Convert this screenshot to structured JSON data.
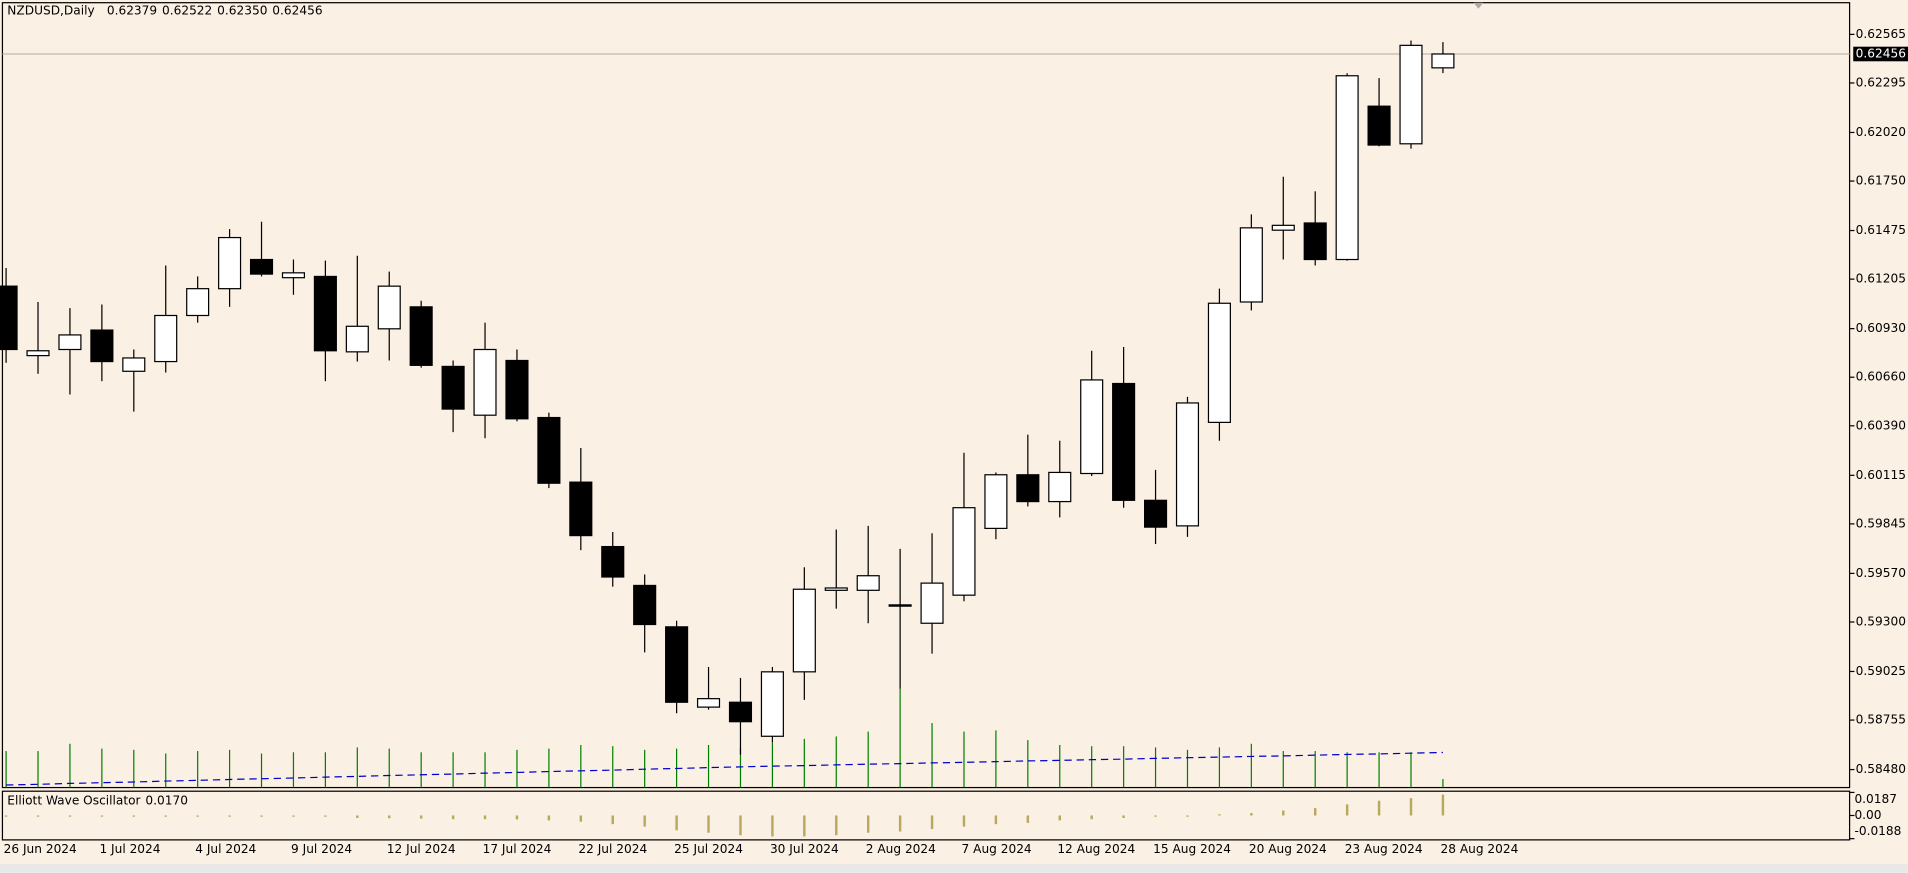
{
  "chart_data": [
    {
      "type": "candlestick",
      "title": "NZDUSD,Daily",
      "header_labels": [
        "0.62379",
        "0.62522",
        "0.62350",
        "0.62456"
      ],
      "categories": [
        "26 Jun 2024",
        null,
        null,
        "1 Jul 2024",
        null,
        null,
        "4 Jul 2024",
        null,
        null,
        "9 Jul 2024",
        null,
        null,
        "12 Jul 2024",
        null,
        null,
        "17 Jul 2024",
        null,
        null,
        "22 Jul 2024",
        null,
        null,
        "25 Jul 2024",
        null,
        null,
        "30 Jul 2024",
        null,
        null,
        "2 Aug 2024",
        null,
        null,
        "7 Aug 2024",
        null,
        null,
        "12 Aug 2024",
        null,
        null,
        "15 Aug 2024",
        null,
        null,
        "20 Aug 2024",
        null,
        null,
        "23 Aug 2024",
        null,
        null,
        "28 Aug 2024"
      ],
      "open": [
        0.61166,
        0.6078,
        0.60814,
        0.60922,
        0.60693,
        0.60747,
        0.61003,
        0.61152,
        0.61314,
        0.61213,
        0.6122,
        0.60801,
        0.60929,
        0.61051,
        0.6072,
        0.60449,
        0.60753,
        0.60436,
        0.60077,
        0.59719,
        0.59503,
        0.59273,
        0.58827,
        0.58854,
        0.58665,
        0.59023,
        0.59476,
        0.59476,
        0.59395,
        0.59293,
        0.59449,
        0.5982,
        0.60118,
        0.59969,
        0.60125,
        0.60625,
        0.59976,
        0.59834,
        0.60409,
        0.61078,
        0.61477,
        0.61517,
        0.61314,
        0.62166,
        0.61957,
        0.62379
      ],
      "high": [
        0.61267,
        0.61078,
        0.61044,
        0.61064,
        0.60814,
        0.61281,
        0.6122,
        0.61483,
        0.61524,
        0.61314,
        0.61308,
        0.61335,
        0.61247,
        0.61085,
        0.60753,
        0.60963,
        0.60814,
        0.60463,
        0.60267,
        0.598,
        0.59564,
        0.59307,
        0.5905,
        0.58989,
        0.5905,
        0.59604,
        0.59814,
        0.59834,
        0.59706,
        0.59793,
        0.6024,
        0.60131,
        0.60341,
        0.60307,
        0.60807,
        0.60828,
        0.60145,
        0.60551,
        0.61152,
        0.61565,
        0.61774,
        0.61693,
        0.62349,
        0.62322,
        0.62531,
        0.62522
      ],
      "low": [
        0.6074,
        0.60679,
        0.60564,
        0.60638,
        0.60469,
        0.60686,
        0.60963,
        0.61051,
        0.6122,
        0.61118,
        0.60638,
        0.60747,
        0.60753,
        0.60713,
        0.60355,
        0.60321,
        0.60415,
        0.60044,
        0.59699,
        0.59496,
        0.59131,
        0.58793,
        0.58813,
        0.58563,
        0.58631,
        0.58867,
        0.59374,
        0.59293,
        0.58928,
        0.59124,
        0.59415,
        0.5976,
        0.59942,
        0.59881,
        0.60111,
        0.59935,
        0.59733,
        0.59773,
        0.60307,
        0.61031,
        0.61314,
        0.61281,
        0.61308,
        0.61943,
        0.6193,
        0.6235
      ],
      "close": [
        0.60814,
        0.60807,
        0.60895,
        0.60747,
        0.60767,
        0.61003,
        0.61152,
        0.61436,
        0.61233,
        0.6124,
        0.60807,
        0.60943,
        0.61166,
        0.60726,
        0.60483,
        0.60814,
        0.60429,
        0.60071,
        0.5978,
        0.5955,
        0.59286,
        0.58854,
        0.58874,
        0.58746,
        0.59023,
        0.59482,
        0.59489,
        0.59557,
        0.59388,
        0.59516,
        0.59935,
        0.60118,
        0.59969,
        0.60131,
        0.60645,
        0.59976,
        0.59827,
        0.60517,
        0.61071,
        0.6149,
        0.61504,
        0.61314,
        0.62335,
        0.6195,
        0.62504,
        0.62456
      ],
      "up_color": "#ffffff",
      "down_color": "#000000",
      "ma": {
        "color": "#0000cc",
        "values": [
          0.58394,
          0.58398,
          0.58403,
          0.58407,
          0.58411,
          0.58416,
          0.5842,
          0.58425,
          0.58429,
          0.58433,
          0.58438,
          0.58442,
          0.58447,
          0.58451,
          0.58455,
          0.5846,
          0.58464,
          0.58469,
          0.58473,
          0.58477,
          0.58482,
          0.58486,
          0.58491,
          0.58495,
          0.58499,
          0.58502,
          0.58506,
          0.5851,
          0.58513,
          0.58517,
          0.5852,
          0.58524,
          0.58528,
          0.58531,
          0.58535,
          0.58538,
          0.58542,
          0.58546,
          0.58549,
          0.58553,
          0.58556,
          0.5856,
          0.58564,
          0.58567,
          0.58571,
          0.58575
        ]
      },
      "volume": {
        "color": "#008000",
        "values": [
          30,
          30,
          36,
          32,
          31,
          28,
          30,
          31,
          28,
          29,
          29,
          33,
          32,
          29,
          29,
          29,
          31,
          32,
          35,
          34,
          31,
          32,
          35,
          33,
          37,
          40,
          42,
          46,
          81,
          53,
          46,
          47,
          39,
          35,
          34,
          34,
          33,
          31,
          33,
          36,
          30,
          30,
          29,
          29,
          29,
          7
        ]
      },
      "ylim": [
        0.5838,
        0.62741
      ],
      "yticks": [
        0.62565,
        0.62295,
        {
          "value": 0.6202,
          "label": "0.62020"
        },
        {
          "value": 0.6175,
          "label": "0.61750"
        },
        0.61475,
        0.61205,
        {
          "value": 0.6093,
          "label": "0.60930"
        },
        {
          "value": 0.6066,
          "label": "0.60660"
        },
        {
          "value": 0.6039,
          "label": "0.60390"
        },
        0.60115,
        0.59845,
        {
          "value": 0.5957,
          "label": "0.59570"
        },
        {
          "value": 0.593,
          "label": "0.59300"
        },
        0.59025,
        0.58755,
        {
          "value": 0.5848,
          "label": "0.58480"
        }
      ]
    },
    {
      "type": "bar",
      "title": "Elliott Wave Oscillator",
      "last_value_label": "0.0170",
      "color": "#b8a860",
      "values": [
        -0.0004,
        -0.0005,
        -0.0006,
        -0.0007,
        -0.0008,
        -0.0008,
        -0.0007,
        -0.0005,
        -0.0003,
        -0.0004,
        -0.0008,
        -0.002,
        -0.0022,
        -0.0025,
        -0.003,
        -0.003,
        -0.0032,
        -0.004,
        -0.005,
        -0.007,
        -0.009,
        -0.012,
        -0.014,
        -0.016,
        -0.017,
        -0.017,
        -0.016,
        -0.014,
        -0.013,
        -0.011,
        -0.009,
        -0.007,
        -0.006,
        -0.004,
        -0.003,
        -0.002,
        -0.001,
        -0.0005,
        0.001,
        0.002,
        0.004,
        0.006,
        0.009,
        0.012,
        0.014,
        0.017
      ],
      "ylim": [
        -0.0188,
        0.0187
      ],
      "yticks": [
        0.0187,
        {
          "value": 0,
          "label": "0.00"
        },
        -0.0188
      ]
    }
  ]
}
